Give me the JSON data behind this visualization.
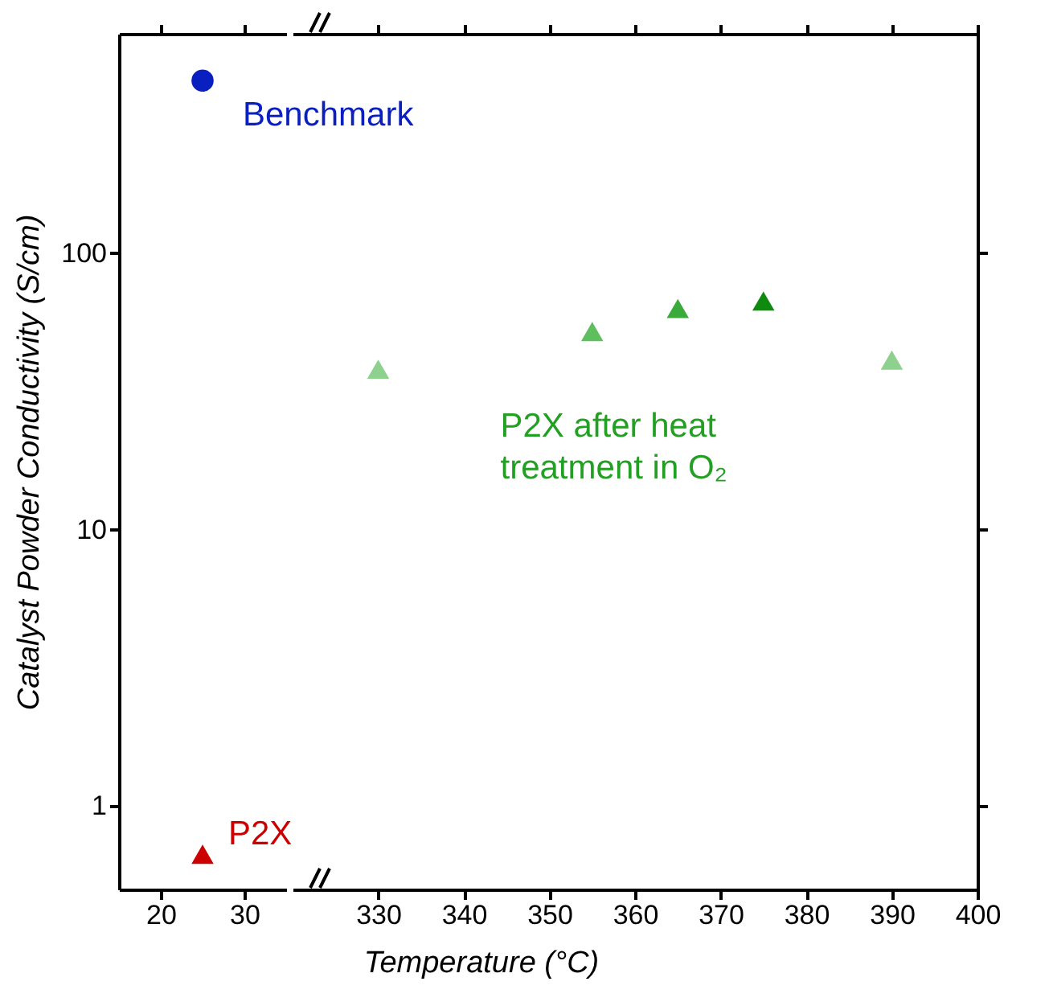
{
  "chart_data": [
    {
      "type": "scatter",
      "ylabel": "Catalyst Powder Conductivity (S/cm)",
      "xlim": [
        15,
        35
      ],
      "xticks": [
        20,
        30
      ],
      "ylim": [
        0.5,
        620
      ],
      "yticks": [
        1,
        10,
        100
      ],
      "log": "y",
      "grid": false,
      "series": [
        {
          "name": "Benchmark",
          "color": "#0a1fbf",
          "marker": "circle",
          "x": [
            25
          ],
          "values": [
            420
          ]
        },
        {
          "name": "P2X",
          "color": "#cc0000",
          "marker": "triangle",
          "x": [
            25
          ],
          "values": [
            0.67
          ]
        }
      ]
    },
    {
      "type": "scatter",
      "xlabel": "Temperature (°C)",
      "xlim": [
        320,
        400
      ],
      "xticks": [
        330,
        340,
        350,
        360,
        370,
        380,
        390,
        400
      ],
      "ylim": [
        0.5,
        620
      ],
      "yticks": [
        1,
        10,
        100
      ],
      "log": "y",
      "grid": false,
      "tick_labels": "x",
      "marker": "triangle",
      "series": [
        {
          "name": "P2X after heat treatment in O₂",
          "color": "#23a023",
          "colors": [
            "#8ed18e",
            "#5fbf5f",
            "#3aab3a",
            "#0e8a0e",
            "#8ed18e"
          ],
          "x": [
            330,
            355,
            365,
            375,
            390
          ],
          "values": [
            38,
            52,
            63,
            67,
            41
          ]
        }
      ]
    }
  ]
}
